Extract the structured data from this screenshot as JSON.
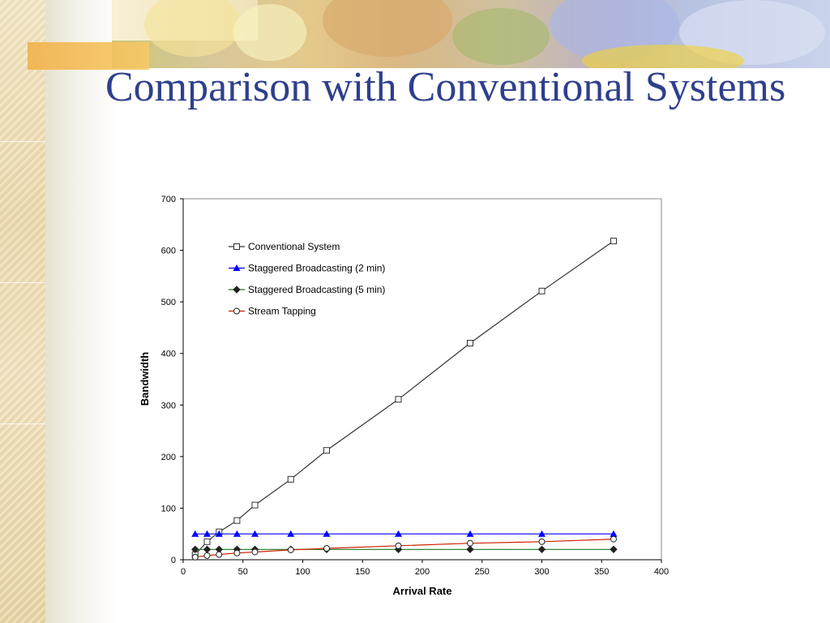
{
  "slide": {
    "title": "Comparison with Conventional Systems"
  },
  "chart_data": {
    "type": "line",
    "title": "",
    "xlabel": "Arrival Rate",
    "ylabel": "Bandwidth",
    "xlim": [
      0,
      400
    ],
    "ylim": [
      0,
      700
    ],
    "xticks": [
      0,
      50,
      100,
      150,
      200,
      250,
      300,
      350,
      400
    ],
    "yticks": [
      0,
      100,
      200,
      300,
      400,
      500,
      600,
      700
    ],
    "grid": false,
    "legend": "top-left inside plot",
    "series": [
      {
        "name": "Conventional System",
        "color": "#333333",
        "marker": "open-square",
        "x": [
          10,
          20,
          30,
          45,
          60,
          90,
          120,
          180,
          240,
          300,
          360
        ],
        "y": [
          10,
          35,
          54,
          76,
          106,
          156,
          212,
          311,
          420,
          521,
          618
        ]
      },
      {
        "name": "Staggered Broadcasting (2 min)",
        "color": "#0000ff",
        "marker": "filled-triangle",
        "x": [
          10,
          20,
          30,
          45,
          60,
          90,
          120,
          180,
          240,
          300,
          360
        ],
        "y": [
          50,
          50,
          50,
          50,
          50,
          50,
          50,
          50,
          50,
          50,
          50
        ]
      },
      {
        "name": "Staggered Broadcasting (5 min)",
        "color": "#1a7a1a",
        "marker": "filled-diamond",
        "x": [
          10,
          20,
          30,
          45,
          60,
          90,
          120,
          180,
          240,
          300,
          360
        ],
        "y": [
          20,
          20,
          20,
          20,
          20,
          20,
          20,
          20,
          20,
          20,
          20
        ]
      },
      {
        "name": "Stream Tapping",
        "color": "#cc2200",
        "marker": "open-circle",
        "x": [
          10,
          20,
          30,
          45,
          60,
          90,
          120,
          180,
          240,
          300,
          360
        ],
        "y": [
          5,
          8,
          10,
          13,
          15,
          19,
          22,
          27,
          32,
          35,
          40
        ]
      }
    ]
  }
}
